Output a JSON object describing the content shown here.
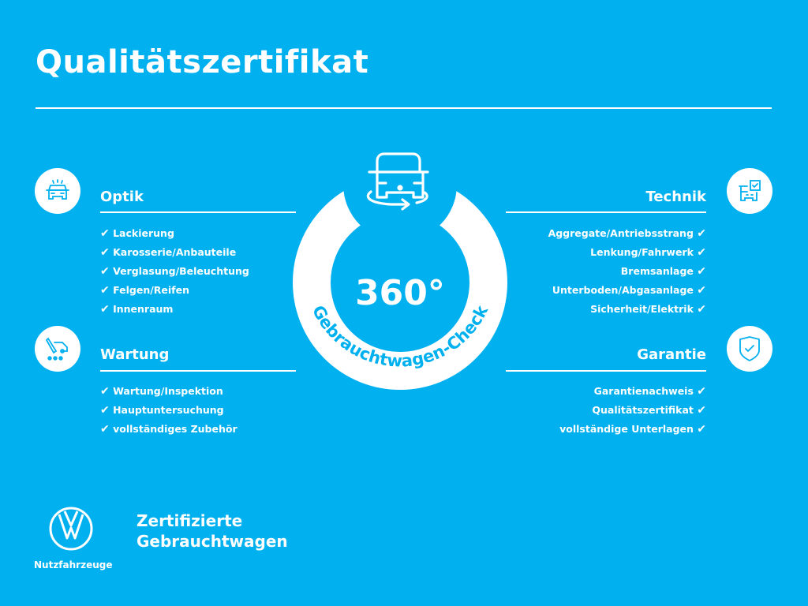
{
  "title": "Qualitätszertifikat",
  "center": {
    "number": "360°",
    "arc_text": "Gebrauchtwagen-Check"
  },
  "sections": {
    "optik": {
      "heading": "Optik",
      "icon": "car-front-icon",
      "items": [
        "Lackierung",
        "Karosserie/Anbauteile",
        "Verglasung/Beleuchtung",
        "Felgen/Reifen",
        "Innenraum"
      ]
    },
    "wartung": {
      "heading": "Wartung",
      "icon": "service-tools-icon",
      "items": [
        "Wartung/Inspektion",
        "Hauptuntersuchung",
        "vollständiges Zubehör"
      ]
    },
    "technik": {
      "heading": "Technik",
      "icon": "car-checklist-icon",
      "items": [
        "Aggregate/Antriebsstrang",
        "Lenkung/Fahrwerk",
        "Bremsanlage",
        "Unterboden/Abgasanlage",
        "Sicherheit/Elektrik"
      ]
    },
    "garantie": {
      "heading": "Garantie",
      "icon": "shield-check-icon",
      "items": [
        "Garantienachweis",
        "Qualitätszertifikat",
        "vollständige Unterlagen"
      ]
    }
  },
  "check_mark": "✔",
  "footer": {
    "brand": "Nutzfahrzeuge",
    "tagline_line1": "Zertifizierte",
    "tagline_line2": "Gebrauchtwagen"
  },
  "colors": {
    "background": "#00b0ef",
    "foreground": "#ffffff"
  }
}
